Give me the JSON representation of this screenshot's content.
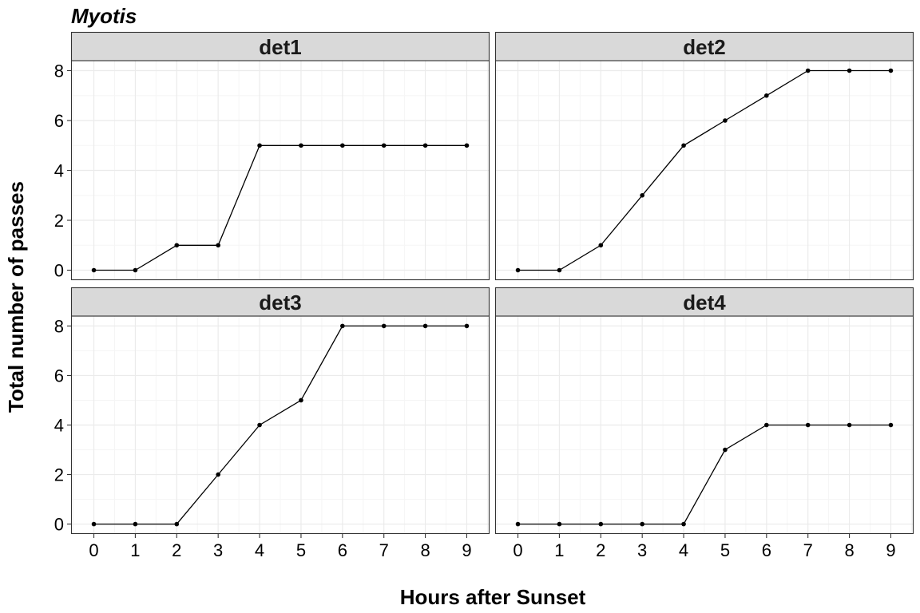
{
  "chart_data": {
    "type": "line",
    "title": "Myotis",
    "xlabel": "Hours after Sunset",
    "ylabel": "Total number of passes",
    "x": [
      0,
      1,
      2,
      3,
      4,
      5,
      6,
      7,
      8,
      9
    ],
    "xlim": [
      -0.55,
      9.55
    ],
    "ylim": [
      -0.4,
      8.4
    ],
    "xticks": [
      "0",
      "1",
      "2",
      "3",
      "4",
      "5",
      "6",
      "7",
      "8",
      "9"
    ],
    "yticks": [
      "0",
      "2",
      "4",
      "6",
      "8"
    ],
    "grid": true,
    "legend": "none",
    "facets": [
      {
        "label": "det1",
        "values": [
          0,
          0,
          1,
          1,
          5,
          5,
          5,
          5,
          5,
          5
        ]
      },
      {
        "label": "det2",
        "values": [
          0,
          0,
          1,
          3,
          5,
          6,
          7,
          8,
          8,
          8
        ]
      },
      {
        "label": "det3",
        "values": [
          0,
          0,
          0,
          2,
          4,
          5,
          8,
          8,
          8,
          8
        ]
      },
      {
        "label": "det4",
        "values": [
          0,
          0,
          0,
          0,
          0,
          3,
          4,
          4,
          4,
          4
        ]
      }
    ],
    "colors": {
      "line": "#000000",
      "point": "#000000",
      "strip_fill": "#d9d9d9",
      "panel_border": "#333333",
      "grid_major": "#ebebeb",
      "grid_minor": "#f5f5f5"
    }
  }
}
